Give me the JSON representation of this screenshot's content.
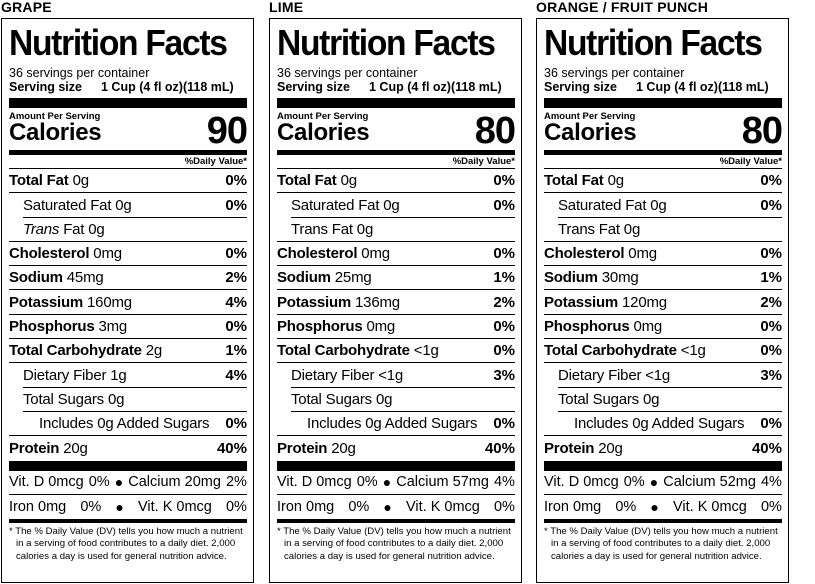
{
  "labels": [
    {
      "flavor": "GRAPE",
      "title": "Nutrition Facts",
      "servings_per_container": "36 servings per container",
      "serving_size_label": "Serving size",
      "serving_size_value": "1 Cup (4 fl oz)(118 mL)",
      "amount_per_serving": "Amount Per Serving",
      "calories_label": "Calories",
      "calories_value": "90",
      "dv_header": "%Daily Value*",
      "total_fat": {
        "label": "Total Fat",
        "amount": "0g",
        "dv": "0%"
      },
      "saturated_fat": {
        "label": "Saturated Fat",
        "amount": "0g",
        "dv": "0%"
      },
      "trans_fat": {
        "label": "Trans",
        "suffix": "Fat 0g"
      },
      "cholesterol": {
        "label": "Cholesterol",
        "amount": "0mg",
        "dv": "0%"
      },
      "sodium": {
        "label": "Sodium",
        "amount": "45mg",
        "dv": "2%"
      },
      "potassium": {
        "label": "Potassium",
        "amount": "160mg",
        "dv": "4%"
      },
      "phosphorus": {
        "label": "Phosphorus",
        "amount": "3mg",
        "dv": "0%"
      },
      "total_carb": {
        "label": "Total Carbohydrate",
        "amount": "2g",
        "dv": "1%"
      },
      "dietary_fiber": {
        "label": "Dietary Fiber",
        "amount": "1g",
        "dv": "4%"
      },
      "total_sugars": {
        "label": "Total Sugars",
        "amount": "0g"
      },
      "added_sugars": {
        "label": "Includes 0g Added Sugars",
        "dv": "0%"
      },
      "protein": {
        "label": "Protein",
        "amount": "20g",
        "dv": "40%"
      },
      "vit_row1_left": "Vit. D 0mcg",
      "vit_row1_left_pct": "0%",
      "vit_row1_right": "Calcium 20mg",
      "vit_row1_right_pct": "2%",
      "vit_row2_left": "Iron 0mg",
      "vit_row2_left_pct": "0%",
      "vit_row2_right": "Vit. K 0mcg",
      "vit_row2_right_pct": "0%",
      "footnote_line1": "* The % Daily Value (DV) tells you how much a nutrient",
      "footnote_line2": "in a serving of food contributes to a daily diet. 2,000",
      "footnote_line3": "calories a day is used for general nutrition advice."
    },
    {
      "flavor": "LIME",
      "title": "Nutrition Facts",
      "servings_per_container": "36 servings per container",
      "serving_size_label": "Serving size",
      "serving_size_value": "1 Cup (4 fl oz)(118 mL)",
      "amount_per_serving": "Amount Per Serving",
      "calories_label": "Calories",
      "calories_value": "80",
      "dv_header": "%Daily Value*",
      "total_fat": {
        "label": "Total Fat",
        "amount": "0g",
        "dv": "0%"
      },
      "saturated_fat": {
        "label": "Saturated Fat",
        "amount": "0g",
        "dv": "0%"
      },
      "trans_fat": {
        "label": "Trans Fat",
        "suffix": "0g"
      },
      "cholesterol": {
        "label": "Cholesterol",
        "amount": "0mg",
        "dv": "0%"
      },
      "sodium": {
        "label": "Sodium",
        "amount": "25mg",
        "dv": "1%"
      },
      "potassium": {
        "label": "Potassium",
        "amount": "136mg",
        "dv": "2%"
      },
      "phosphorus": {
        "label": "Phosphorus",
        "amount": "0mg",
        "dv": "0%"
      },
      "total_carb": {
        "label": "Total Carbohydrate",
        "amount": "<1g",
        "dv": "0%"
      },
      "dietary_fiber": {
        "label": "Dietary Fiber",
        "amount": "<1g",
        "dv": "3%"
      },
      "total_sugars": {
        "label": "Total Sugars",
        "amount": "0g"
      },
      "added_sugars": {
        "label": "Includes 0g Added Sugars",
        "dv": "0%"
      },
      "protein": {
        "label": "Protein",
        "amount": "20g",
        "dv": "40%"
      },
      "vit_row1_left": "Vit. D 0mcg",
      "vit_row1_left_pct": "0%",
      "vit_row1_right": "Calcium 57mg",
      "vit_row1_right_pct": "4%",
      "vit_row2_left": "Iron 0mg",
      "vit_row2_left_pct": "0%",
      "vit_row2_right": "Vit. K 0mcg",
      "vit_row2_right_pct": "0%",
      "footnote_line1": "* The % Daily Value (DV) tells you how much a nutrient",
      "footnote_line2": "in a serving of food contributes to a daily diet. 2,000",
      "footnote_line3": "calories a day is used for general nutrition advice."
    },
    {
      "flavor": "ORANGE / FRUIT PUNCH",
      "title": "Nutrition Facts",
      "servings_per_container": "36 servings per container",
      "serving_size_label": "Serving size",
      "serving_size_value": "1 Cup (4 fl oz)(118 mL)",
      "amount_per_serving": "Amount Per Serving",
      "calories_label": "Calories",
      "calories_value": "80",
      "dv_header": "%Daily Value*",
      "total_fat": {
        "label": "Total Fat",
        "amount": "0g",
        "dv": "0%"
      },
      "saturated_fat": {
        "label": "Saturated Fat",
        "amount": "0g",
        "dv": "0%"
      },
      "trans_fat": {
        "label": "Trans Fat",
        "suffix": "0g"
      },
      "cholesterol": {
        "label": "Cholesterol",
        "amount": "0mg",
        "dv": "0%"
      },
      "sodium": {
        "label": "Sodium",
        "amount": "30mg",
        "dv": "1%"
      },
      "potassium": {
        "label": "Potassium",
        "amount": "120mg",
        "dv": "2%"
      },
      "phosphorus": {
        "label": "Phosphorus",
        "amount": "0mg",
        "dv": "0%"
      },
      "total_carb": {
        "label": "Total Carbohydrate",
        "amount": "<1g",
        "dv": "0%"
      },
      "dietary_fiber": {
        "label": "Dietary Fiber",
        "amount": "<1g",
        "dv": "3%"
      },
      "total_sugars": {
        "label": "Total Sugars",
        "amount": "0g"
      },
      "added_sugars": {
        "label": "Includes 0g Added Sugars",
        "dv": "0%"
      },
      "protein": {
        "label": "Protein",
        "amount": "20g",
        "dv": "40%"
      },
      "vit_row1_left": "Vit. D 0mcg",
      "vit_row1_left_pct": "0%",
      "vit_row1_right": "Calcium 52mg",
      "vit_row1_right_pct": "4%",
      "vit_row2_left": "Iron 0mg",
      "vit_row2_left_pct": "0%",
      "vit_row2_right": "Vit. K 0mcg",
      "vit_row2_right_pct": "0%",
      "footnote_line1": "* The % Daily Value (DV) tells you how much a nutrient",
      "footnote_line2": "in a serving of food contributes to a daily diet. 2,000",
      "footnote_line3": "calories a day is used for general nutrition advice."
    }
  ]
}
